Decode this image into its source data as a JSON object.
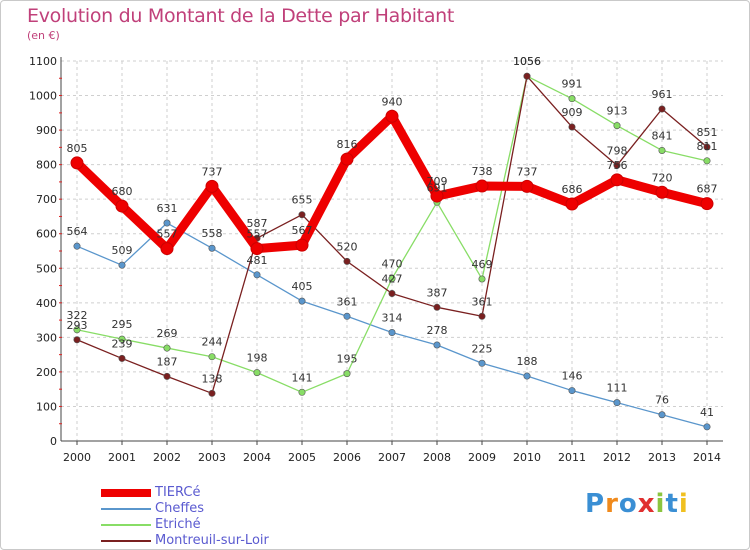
{
  "title": "Evolution du Montant de la Dette par Habitant",
  "unit": "(en €)",
  "logo": {
    "text": "Proxiti",
    "letter_colors": [
      "#3a8fd4",
      "#f08a1c",
      "#3a8fd4",
      "#e03030",
      "#8bc53f",
      "#3a8fd4",
      "#f0c020"
    ]
  },
  "chart_data": {
    "type": "line",
    "categories": [
      "2000",
      "2001",
      "2002",
      "2003",
      "2004",
      "2005",
      "2006",
      "2007",
      "2008",
      "2009",
      "2010",
      "2011",
      "2012",
      "2013",
      "2014"
    ],
    "ylim": [
      0,
      1100
    ],
    "yticks": [
      0,
      100,
      200,
      300,
      400,
      500,
      600,
      700,
      800,
      900,
      1000,
      1100
    ],
    "grid": true,
    "legend_position": "bottom-left",
    "series": [
      {
        "name": "TIERCé",
        "color": "#ee0000",
        "weight": "thick",
        "values": [
          805,
          680,
          557,
          737,
          557,
          567,
          816,
          940,
          709,
          738,
          737,
          686,
          756,
          720,
          687
        ],
        "labels": [
          "805",
          "680",
          "557",
          "737",
          "557",
          "567",
          "816",
          "940",
          "709",
          "738",
          "737",
          "686",
          "756",
          "720",
          "687"
        ]
      },
      {
        "name": "Cheffes",
        "color": "#5a96cc",
        "weight": "thin",
        "values": [
          564,
          509,
          631,
          558,
          481,
          405,
          361,
          314,
          278,
          225,
          188,
          146,
          111,
          76,
          41
        ],
        "labels": [
          "564",
          "509",
          "631",
          "558",
          "481",
          "405",
          "361",
          "314",
          "278",
          "225",
          "188",
          "146",
          "111",
          "76",
          "41"
        ]
      },
      {
        "name": "Etriché",
        "color": "#88dd66",
        "weight": "thin",
        "values": [
          322,
          295,
          269,
          244,
          198,
          141,
          195,
          470,
          691,
          469,
          1056,
          991,
          913,
          841,
          811
        ],
        "labels": [
          "322",
          "295",
          "269",
          "244",
          "198",
          "141",
          "195",
          "470",
          "691",
          "469",
          "1056",
          "991",
          "913",
          "841",
          "811"
        ]
      },
      {
        "name": "Montreuil-sur-Loir",
        "color": "#7a2020",
        "weight": "thin",
        "values": [
          293,
          239,
          187,
          138,
          587,
          655,
          520,
          427,
          387,
          361,
          1056,
          909,
          798,
          961,
          851
        ],
        "labels": [
          "293",
          "239",
          "187",
          "138",
          "587",
          "655",
          "520",
          "427",
          "387",
          "361",
          "1056",
          "909",
          "798",
          "961",
          "851"
        ]
      }
    ]
  }
}
